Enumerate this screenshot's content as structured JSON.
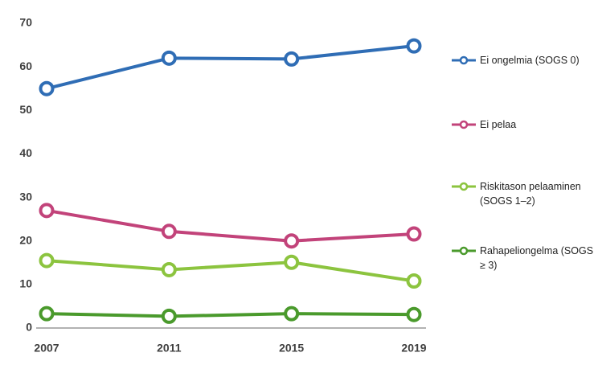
{
  "chart_data": {
    "type": "line",
    "categories": [
      "2007",
      "2011",
      "2015",
      "2019"
    ],
    "series": [
      {
        "name": "Ei ongelmia (SOGS 0)",
        "color": "#2f6db5",
        "values": [
          55,
          62,
          61.8,
          64.8
        ]
      },
      {
        "name": "Ei pelaa",
        "color": "#c2437a",
        "values": [
          27,
          22.2,
          20,
          21.6
        ]
      },
      {
        "name": "Riskitason pelaaminen (SOGS 1–2)",
        "color": "#8cc43f",
        "values": [
          15.5,
          13.4,
          15.1,
          10.8
        ]
      },
      {
        "name": "Rahapeliongelma (SOGS ≥ 3)",
        "color": "#4a9a2c",
        "values": [
          3.3,
          2.7,
          3.3,
          3.1
        ]
      }
    ],
    "ylim": [
      0,
      70
    ],
    "yticks": [
      0,
      10,
      20,
      30,
      40,
      50,
      60,
      70
    ],
    "grid": false
  }
}
